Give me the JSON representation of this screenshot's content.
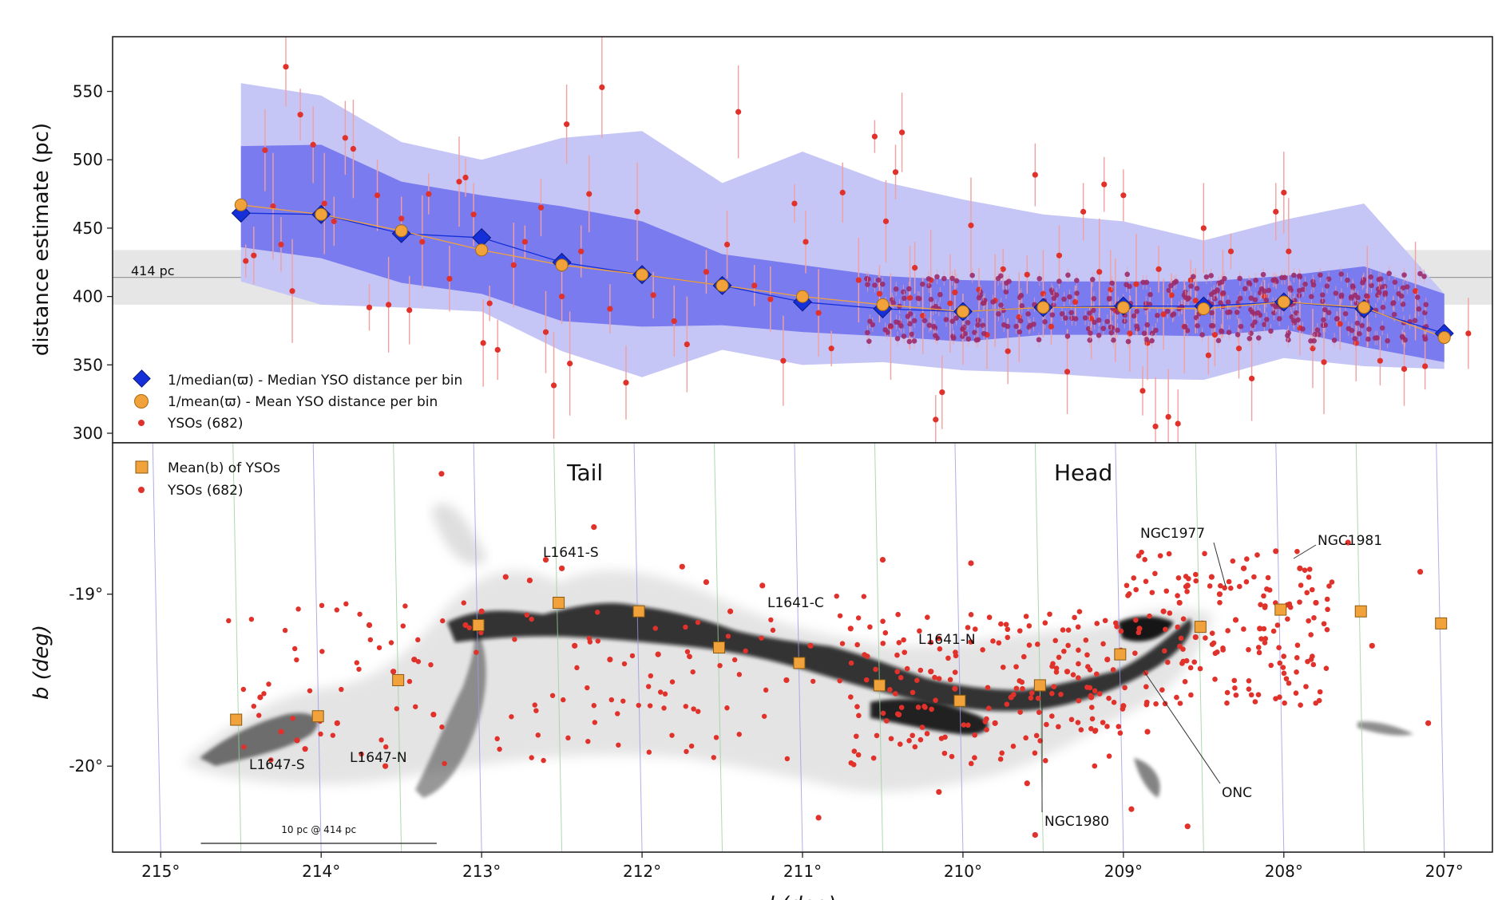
{
  "chart_data": [
    {
      "type": "scatter",
      "panel": "top",
      "ylabel": "distance estimate (pc)",
      "xlim": [
        215.3,
        206.7
      ],
      "ylim": [
        293,
        590
      ],
      "yticks": [
        300,
        350,
        400,
        450,
        500,
        550
      ],
      "reference_line": {
        "value": 414,
        "label": "414 pc",
        "band": [
          394,
          434
        ]
      },
      "legend": {
        "position": "lower-left",
        "entries": [
          {
            "key": "median",
            "label": "1/median(ϖ) - Median YSO distance per bin"
          },
          {
            "key": "mean",
            "label": "1/mean(ϖ) - Mean YSO distance per bin"
          },
          {
            "key": "ysos",
            "label": "YSOs (682)"
          }
        ]
      },
      "bins_l": [
        214.5,
        214.0,
        213.5,
        213.0,
        212.5,
        212.0,
        211.5,
        211.0,
        210.5,
        210.0,
        209.5,
        209.0,
        208.5,
        208.0,
        207.5,
        207.0
      ],
      "median_distance": [
        461,
        460,
        446,
        443,
        425,
        416,
        408,
        396,
        391,
        389,
        392,
        393,
        393,
        396,
        391,
        373
      ],
      "mean_distance": [
        467,
        460,
        448,
        434,
        423,
        416,
        408,
        400,
        394,
        389,
        392,
        392,
        391,
        396,
        392,
        370
      ],
      "band_inner_upper": [
        510,
        511,
        484,
        474,
        466,
        455,
        431,
        423,
        415,
        412,
        411,
        411,
        411,
        415,
        422,
        402
      ],
      "band_inner_lower": [
        436,
        428,
        410,
        402,
        382,
        378,
        379,
        374,
        371,
        367,
        372,
        372,
        371,
        376,
        363,
        352
      ],
      "band_outer_upper": [
        556,
        547,
        513,
        500,
        516,
        521,
        483,
        506,
        484,
        471,
        460,
        455,
        441,
        456,
        468,
        402
      ],
      "band_outer_lower": [
        411,
        394,
        392,
        389,
        360,
        341,
        361,
        350,
        352,
        346,
        344,
        340,
        339,
        355,
        349,
        347
      ],
      "colors": {
        "outer_band": "#c6c6f6",
        "inner_band": "#7b7bf0",
        "median": "#1530d8",
        "mean": "#f2a23a",
        "yso": "#e0312b",
        "error_bar": "#f0a0a0",
        "ref_band": "#e6e6e6"
      },
      "ysos_count": 682,
      "ysos_sample": [
        {
          "l": 214.47,
          "d": 426
        },
        {
          "l": 214.42,
          "d": 430
        },
        {
          "l": 214.35,
          "d": 507
        },
        {
          "l": 214.3,
          "d": 466
        },
        {
          "l": 214.25,
          "d": 438
        },
        {
          "l": 214.22,
          "d": 568
        },
        {
          "l": 214.18,
          "d": 404
        },
        {
          "l": 214.13,
          "d": 533
        },
        {
          "l": 214.05,
          "d": 511
        },
        {
          "l": 213.98,
          "d": 468
        },
        {
          "l": 213.92,
          "d": 455
        },
        {
          "l": 213.85,
          "d": 516
        },
        {
          "l": 213.8,
          "d": 508
        },
        {
          "l": 213.7,
          "d": 392
        },
        {
          "l": 213.65,
          "d": 474
        },
        {
          "l": 213.58,
          "d": 394
        },
        {
          "l": 213.5,
          "d": 457
        },
        {
          "l": 213.45,
          "d": 390
        },
        {
          "l": 213.37,
          "d": 440
        },
        {
          "l": 213.33,
          "d": 475
        },
        {
          "l": 213.2,
          "d": 413
        },
        {
          "l": 213.14,
          "d": 484
        },
        {
          "l": 213.1,
          "d": 487
        },
        {
          "l": 213.05,
          "d": 460
        },
        {
          "l": 212.99,
          "d": 366
        },
        {
          "l": 212.95,
          "d": 395
        },
        {
          "l": 212.9,
          "d": 361
        },
        {
          "l": 212.8,
          "d": 423
        },
        {
          "l": 212.73,
          "d": 440
        },
        {
          "l": 212.63,
          "d": 465
        },
        {
          "l": 212.6,
          "d": 374
        },
        {
          "l": 212.55,
          "d": 335
        },
        {
          "l": 212.5,
          "d": 400
        },
        {
          "l": 212.47,
          "d": 526
        },
        {
          "l": 212.45,
          "d": 351
        },
        {
          "l": 212.38,
          "d": 433
        },
        {
          "l": 212.33,
          "d": 475
        },
        {
          "l": 212.25,
          "d": 553
        },
        {
          "l": 212.2,
          "d": 391
        },
        {
          "l": 212.1,
          "d": 337
        },
        {
          "l": 212.03,
          "d": 462
        },
        {
          "l": 211.93,
          "d": 401
        },
        {
          "l": 211.8,
          "d": 382
        },
        {
          "l": 211.72,
          "d": 365
        },
        {
          "l": 211.6,
          "d": 418
        },
        {
          "l": 211.47,
          "d": 438
        },
        {
          "l": 211.4,
          "d": 535
        },
        {
          "l": 211.3,
          "d": 408
        },
        {
          "l": 211.2,
          "d": 398
        },
        {
          "l": 211.12,
          "d": 353
        },
        {
          "l": 211.05,
          "d": 468
        },
        {
          "l": 210.98,
          "d": 440
        },
        {
          "l": 210.9,
          "d": 388
        },
        {
          "l": 210.82,
          "d": 362
        },
        {
          "l": 210.75,
          "d": 476
        },
        {
          "l": 210.65,
          "d": 412
        },
        {
          "l": 210.55,
          "d": 517
        },
        {
          "l": 210.52,
          "d": 402
        },
        {
          "l": 210.48,
          "d": 455
        },
        {
          "l": 210.45,
          "d": 378
        },
        {
          "l": 210.42,
          "d": 491
        },
        {
          "l": 210.38,
          "d": 520
        },
        {
          "l": 210.33,
          "d": 399
        },
        {
          "l": 210.3,
          "d": 421
        },
        {
          "l": 210.25,
          "d": 386
        },
        {
          "l": 210.2,
          "d": 412
        },
        {
          "l": 210.17,
          "d": 310
        },
        {
          "l": 210.13,
          "d": 330
        },
        {
          "l": 210.08,
          "d": 395
        },
        {
          "l": 210.05,
          "d": 403
        },
        {
          "l": 210.0,
          "d": 376
        },
        {
          "l": 209.95,
          "d": 452
        },
        {
          "l": 209.9,
          "d": 405
        },
        {
          "l": 209.85,
          "d": 372
        },
        {
          "l": 209.8,
          "d": 397
        },
        {
          "l": 209.75,
          "d": 420
        },
        {
          "l": 209.72,
          "d": 360
        },
        {
          "l": 209.65,
          "d": 385
        },
        {
          "l": 209.6,
          "d": 416
        },
        {
          "l": 209.55,
          "d": 489
        },
        {
          "l": 209.5,
          "d": 402
        },
        {
          "l": 209.45,
          "d": 378
        },
        {
          "l": 209.4,
          "d": 430
        },
        {
          "l": 209.35,
          "d": 345
        },
        {
          "l": 209.3,
          "d": 396
        },
        {
          "l": 209.25,
          "d": 462
        },
        {
          "l": 209.2,
          "d": 384
        },
        {
          "l": 209.15,
          "d": 418
        },
        {
          "l": 209.12,
          "d": 482
        },
        {
          "l": 209.08,
          "d": 405
        },
        {
          "l": 209.05,
          "d": 390
        },
        {
          "l": 209.0,
          "d": 474
        },
        {
          "l": 208.96,
          "d": 373
        },
        {
          "l": 208.92,
          "d": 409
        },
        {
          "l": 208.88,
          "d": 331
        },
        {
          "l": 208.85,
          "d": 366
        },
        {
          "l": 208.8,
          "d": 305
        },
        {
          "l": 208.78,
          "d": 420
        },
        {
          "l": 208.75,
          "d": 387
        },
        {
          "l": 208.72,
          "d": 312
        },
        {
          "l": 208.7,
          "d": 401
        },
        {
          "l": 208.66,
          "d": 307
        },
        {
          "l": 208.62,
          "d": 378
        },
        {
          "l": 208.58,
          "d": 412
        },
        {
          "l": 208.55,
          "d": 397
        },
        {
          "l": 208.5,
          "d": 450
        },
        {
          "l": 208.47,
          "d": 357
        },
        {
          "l": 208.43,
          "d": 372
        },
        {
          "l": 208.38,
          "d": 402
        },
        {
          "l": 208.33,
          "d": 433
        },
        {
          "l": 208.28,
          "d": 362
        },
        {
          "l": 208.2,
          "d": 340
        },
        {
          "l": 208.12,
          "d": 400
        },
        {
          "l": 208.05,
          "d": 462
        },
        {
          "l": 208.0,
          "d": 476
        },
        {
          "l": 207.97,
          "d": 433
        },
        {
          "l": 207.9,
          "d": 377
        },
        {
          "l": 207.82,
          "d": 362
        },
        {
          "l": 207.75,
          "d": 352
        },
        {
          "l": 207.65,
          "d": 380
        },
        {
          "l": 207.55,
          "d": 366
        },
        {
          "l": 207.48,
          "d": 400
        },
        {
          "l": 207.4,
          "d": 353
        },
        {
          "l": 207.25,
          "d": 347
        },
        {
          "l": 207.18,
          "d": 404
        },
        {
          "l": 207.12,
          "d": 349
        },
        {
          "l": 206.85,
          "d": 373
        }
      ]
    },
    {
      "type": "scatter",
      "panel": "bottom",
      "ylabel": "b (deg)",
      "xlabel": "l (deg)",
      "xlim": [
        215.3,
        206.7
      ],
      "ylim": [
        -20.5,
        -18.12
      ],
      "xticks": [
        215,
        214,
        213,
        212,
        211,
        210,
        209,
        208,
        207
      ],
      "xtick_labels": [
        "215°",
        "214°",
        "213°",
        "212°",
        "211°",
        "210°",
        "209°",
        "208°",
        "207°"
      ],
      "yticks": [
        -19,
        -20
      ],
      "ytick_labels": [
        "-19°",
        "-20°"
      ],
      "legend": {
        "position": "top-left",
        "entries": [
          {
            "key": "mean_b",
            "label": "Mean(b) of YSOs"
          },
          {
            "key": "ysos",
            "label": "YSOs (682)"
          }
        ]
      },
      "region_labels": [
        "Tail",
        "Head"
      ],
      "scale_bar": {
        "label": "10 pc @ 414 pc",
        "l_start": 214.75,
        "l_end": 213.28
      },
      "mean_b": [
        {
          "l": 214.53,
          "b": -19.73
        },
        {
          "l": 214.02,
          "b": -19.71
        },
        {
          "l": 213.52,
          "b": -19.5
        },
        {
          "l": 213.02,
          "b": -19.18
        },
        {
          "l": 212.52,
          "b": -19.05
        },
        {
          "l": 212.02,
          "b": -19.1
        },
        {
          "l": 211.52,
          "b": -19.31
        },
        {
          "l": 211.02,
          "b": -19.4
        },
        {
          "l": 210.52,
          "b": -19.53
        },
        {
          "l": 210.02,
          "b": -19.62
        },
        {
          "l": 209.52,
          "b": -19.53
        },
        {
          "l": 209.02,
          "b": -19.35
        },
        {
          "l": 208.52,
          "b": -19.19
        },
        {
          "l": 208.02,
          "b": -19.09
        },
        {
          "l": 207.52,
          "b": -19.1
        },
        {
          "l": 207.02,
          "b": -19.17
        }
      ],
      "cloud_labels": [
        {
          "name": "L1641-S",
          "l": 212.6,
          "b": -18.83
        },
        {
          "name": "L1641-C",
          "l": 211.05,
          "b": -19.04
        },
        {
          "name": "L1641-N",
          "l": 209.9,
          "b": -19.25
        },
        {
          "name": "L1647-S",
          "l": 214.0,
          "b": -19.97
        },
        {
          "name": "L1647-N",
          "l": 213.5,
          "b": -19.93
        },
        {
          "name": "NGC1977",
          "l": 208.72,
          "b": -18.7
        },
        {
          "name": "NGC1981",
          "l": 207.75,
          "b": -18.73
        },
        {
          "name": "ONC",
          "l": 208.3,
          "b": -20.1
        },
        {
          "name": "NGC1980",
          "l": 209.32,
          "b": -20.28
        }
      ],
      "ysos_sample": [
        {
          "l": 214.38,
          "b": -19.6
        },
        {
          "l": 214.25,
          "b": -19.8
        },
        {
          "l": 214.15,
          "b": -19.85
        },
        {
          "l": 214.1,
          "b": -19.9
        },
        {
          "l": 213.9,
          "b": -19.75
        },
        {
          "l": 213.7,
          "b": -19.18
        },
        {
          "l": 213.6,
          "b": -20.0
        },
        {
          "l": 213.55,
          "b": -19.45
        },
        {
          "l": 213.42,
          "b": -19.38
        },
        {
          "l": 213.3,
          "b": -19.7
        },
        {
          "l": 213.25,
          "b": -18.3
        },
        {
          "l": 213.1,
          "b": -19.18
        },
        {
          "l": 213.0,
          "b": -19.1
        },
        {
          "l": 212.85,
          "b": -18.9
        },
        {
          "l": 212.7,
          "b": -18.92
        },
        {
          "l": 212.6,
          "b": -18.8
        },
        {
          "l": 212.5,
          "b": -18.85
        },
        {
          "l": 212.42,
          "b": -19.3
        },
        {
          "l": 212.3,
          "b": -18.61
        },
        {
          "l": 212.2,
          "b": -19.38
        },
        {
          "l": 211.9,
          "b": -19.35
        },
        {
          "l": 211.75,
          "b": -18.84
        },
        {
          "l": 211.6,
          "b": -18.93
        },
        {
          "l": 211.45,
          "b": -19.1
        },
        {
          "l": 211.25,
          "b": -18.95
        },
        {
          "l": 211.1,
          "b": -19.5
        },
        {
          "l": 210.95,
          "b": -19.3
        },
        {
          "l": 210.7,
          "b": -19.2
        },
        {
          "l": 210.5,
          "b": -18.8
        },
        {
          "l": 210.4,
          "b": -19.7
        },
        {
          "l": 210.2,
          "b": -19.45
        },
        {
          "l": 210.05,
          "b": -19.55
        },
        {
          "l": 209.95,
          "b": -18.82
        },
        {
          "l": 209.8,
          "b": -19.75
        },
        {
          "l": 209.7,
          "b": -19.6
        },
        {
          "l": 209.6,
          "b": -20.1
        },
        {
          "l": 209.5,
          "b": -19.55
        },
        {
          "l": 209.35,
          "b": -19.45
        },
        {
          "l": 209.2,
          "b": -19.6
        },
        {
          "l": 209.1,
          "b": -19.38
        },
        {
          "l": 209.0,
          "b": -19.65
        },
        {
          "l": 208.9,
          "b": -19.2
        },
        {
          "l": 208.85,
          "b": -19.8
        },
        {
          "l": 208.75,
          "b": -19.1
        },
        {
          "l": 208.65,
          "b": -19.05
        },
        {
          "l": 208.6,
          "b": -18.95
        },
        {
          "l": 208.55,
          "b": -19.25
        },
        {
          "l": 208.45,
          "b": -18.9
        },
        {
          "l": 208.4,
          "b": -19.0
        },
        {
          "l": 208.3,
          "b": -19.15
        },
        {
          "l": 208.25,
          "b": -18.85
        },
        {
          "l": 208.15,
          "b": -19.2
        },
        {
          "l": 208.05,
          "b": -18.75
        },
        {
          "l": 207.9,
          "b": -18.85
        },
        {
          "l": 207.8,
          "b": -19.05
        },
        {
          "l": 207.6,
          "b": -18.7
        },
        {
          "l": 207.45,
          "b": -19.3
        },
        {
          "l": 207.15,
          "b": -18.87
        },
        {
          "l": 207.1,
          "b": -19.75
        },
        {
          "l": 209.55,
          "b": -20.4
        },
        {
          "l": 210.15,
          "b": -20.15
        },
        {
          "l": 208.95,
          "b": -20.25
        },
        {
          "l": 208.6,
          "b": -20.35
        },
        {
          "l": 210.9,
          "b": -20.3
        }
      ],
      "colors": {
        "mean_b": "#f2a23a",
        "yso": "#e0312b",
        "grid_blue": "#9a9ae6",
        "grid_green": "#9ccf9c"
      }
    }
  ]
}
